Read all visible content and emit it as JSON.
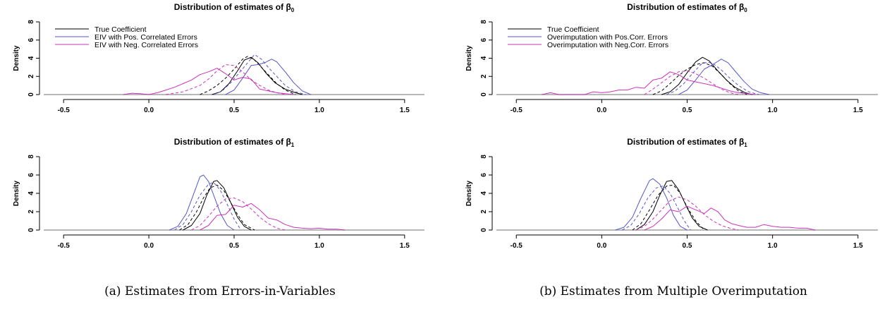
{
  "captions": [
    "(a) Estimates from Errors-in-Variables",
    "(b) Estimates from Multiple Overimputation"
  ],
  "colors": {
    "true": "#000000",
    "pos": "#5555cc",
    "neg": "#cc33bb",
    "baseline": "#a0a0a0"
  },
  "chart_data": [
    {
      "type": "line",
      "title": "Distribution of estimates of β0",
      "title_text": "Distribution of estimates of β",
      "title_sub": "0",
      "ylabel": "Density",
      "xlim": [
        -0.6,
        1.6
      ],
      "ylim": [
        0,
        8
      ],
      "xticks": [
        -0.5,
        0.0,
        0.5,
        1.0,
        1.5
      ],
      "xtick_labels": [
        "-0.5",
        "0.0",
        "0.5",
        "1.0",
        "1.5"
      ],
      "yticks": [
        0,
        2,
        4,
        6,
        8
      ],
      "ytick_labels": [
        "0",
        "2",
        "4",
        "6",
        "8"
      ],
      "legend": [
        "True Coefficient",
        "EIV with Pos. Correlated Errors",
        "EIV with Neg. Correlated Errors"
      ],
      "series": [
        {
          "name": "True Coefficient",
          "color": "true",
          "dash": false,
          "x": [
            0.37,
            0.42,
            0.47,
            0.52,
            0.56,
            0.6,
            0.64,
            0.69,
            0.74,
            0.8,
            0.86,
            0.9
          ],
          "y": [
            0,
            0.3,
            1.2,
            2.6,
            3.8,
            4.1,
            3.5,
            2.3,
            1.3,
            0.6,
            0.2,
            0
          ]
        },
        {
          "name": "",
          "color": "true",
          "dash": true,
          "x": [
            0.3,
            0.35,
            0.4,
            0.45,
            0.5,
            0.55,
            0.58,
            0.62,
            0.66,
            0.7,
            0.75,
            0.8,
            0.86
          ],
          "y": [
            0,
            0.4,
            1,
            1.8,
            2.8,
            3.9,
            4.2,
            3.8,
            3,
            2.2,
            1.2,
            0.5,
            0
          ]
        },
        {
          "name": "EIV with Pos. Correlated Errors",
          "color": "pos",
          "dash": false,
          "x": [
            0.45,
            0.5,
            0.55,
            0.6,
            0.64,
            0.68,
            0.72,
            0.75,
            0.8,
            0.85,
            0.9,
            0.95
          ],
          "y": [
            0,
            0.5,
            1.8,
            3.2,
            3.3,
            3.5,
            3.9,
            3.6,
            2.5,
            1.3,
            0.4,
            0
          ]
        },
        {
          "name": "",
          "color": "pos",
          "dash": true,
          "x": [
            0.38,
            0.43,
            0.48,
            0.53,
            0.58,
            0.62,
            0.66,
            0.7,
            0.75,
            0.8,
            0.86,
            0.92
          ],
          "y": [
            0,
            0.4,
            1.3,
            2.4,
            3.5,
            4.4,
            3.9,
            3,
            2,
            1,
            0.3,
            0
          ]
        },
        {
          "name": "EIV with Neg. Correlated Errors",
          "color": "neg",
          "dash": false,
          "x": [
            -0.15,
            -0.1,
            -0.05,
            0,
            0.05,
            0.1,
            0.15,
            0.2,
            0.25,
            0.3,
            0.35,
            0.4,
            0.45,
            0.5,
            0.55,
            0.6,
            0.65,
            0.7,
            0.75,
            0.8,
            0.85
          ],
          "y": [
            0,
            0.15,
            0.1,
            0,
            0.2,
            0.5,
            0.8,
            1.2,
            1.6,
            2.2,
            2.5,
            2.9,
            2.3,
            1.6,
            1.9,
            1.7,
            0.6,
            0.4,
            0.2,
            0.1,
            0
          ]
        },
        {
          "name": "",
          "color": "neg",
          "dash": true,
          "x": [
            0.1,
            0.2,
            0.3,
            0.35,
            0.4,
            0.45,
            0.5,
            0.55,
            0.6,
            0.65,
            0.7,
            0.75,
            0.8
          ],
          "y": [
            0,
            0.3,
            1,
            1.7,
            2.6,
            3.3,
            3.2,
            2.5,
            1.6,
            1,
            0.5,
            0.2,
            0
          ]
        }
      ]
    },
    {
      "type": "line",
      "title": "Distribution of estimates of β1",
      "title_text": "Distribution of estimates of β",
      "title_sub": "1",
      "ylabel": "Density",
      "xlim": [
        -0.6,
        1.6
      ],
      "ylim": [
        0,
        8
      ],
      "xticks": [
        -0.5,
        0.0,
        0.5,
        1.0,
        1.5
      ],
      "xtick_labels": [
        "-0.5",
        "0.0",
        "0.5",
        "1.0",
        "1.5"
      ],
      "yticks": [
        0,
        2,
        4,
        6,
        8
      ],
      "ytick_labels": [
        "0",
        "2",
        "4",
        "6",
        "8"
      ],
      "legend": [],
      "series": [
        {
          "name": "",
          "color": "true",
          "dash": false,
          "x": [
            0.2,
            0.25,
            0.3,
            0.34,
            0.38,
            0.4,
            0.44,
            0.48,
            0.52,
            0.56,
            0.6
          ],
          "y": [
            0,
            0.5,
            1.8,
            3.8,
            5.3,
            5.4,
            4.6,
            3,
            1.4,
            0.4,
            0
          ]
        },
        {
          "name": "",
          "color": "true",
          "dash": true,
          "x": [
            0.18,
            0.23,
            0.28,
            0.32,
            0.36,
            0.4,
            0.44,
            0.48,
            0.52,
            0.56,
            0.62
          ],
          "y": [
            0,
            0.6,
            2,
            3.5,
            4.6,
            4.9,
            4.3,
            3,
            1.7,
            0.6,
            0
          ]
        },
        {
          "name": "",
          "color": "pos",
          "dash": false,
          "x": [
            0.12,
            0.17,
            0.22,
            0.26,
            0.3,
            0.32,
            0.35,
            0.38,
            0.42,
            0.46,
            0.5
          ],
          "y": [
            0,
            0.4,
            1.8,
            3.8,
            5.8,
            6,
            5.3,
            3.8,
            1.8,
            0.5,
            0
          ]
        },
        {
          "name": "",
          "color": "pos",
          "dash": true,
          "x": [
            0.15,
            0.2,
            0.25,
            0.3,
            0.35,
            0.38,
            0.42,
            0.46,
            0.5,
            0.54
          ],
          "y": [
            0,
            0.6,
            2,
            3.8,
            5,
            5.2,
            4.3,
            2.8,
            1.2,
            0
          ]
        },
        {
          "name": "",
          "color": "neg",
          "dash": false,
          "x": [
            0.3,
            0.35,
            0.4,
            0.45,
            0.5,
            0.55,
            0.6,
            0.65,
            0.7,
            0.75,
            0.8,
            0.85,
            0.9,
            0.95,
            1,
            1.05,
            1.1,
            1.15
          ],
          "y": [
            0,
            0.5,
            1.6,
            1.7,
            2.7,
            2.5,
            2.9,
            2.2,
            1.3,
            1.1,
            0.6,
            0.3,
            0.2,
            0.15,
            0.2,
            0.1,
            0.1,
            0
          ]
        },
        {
          "name": "",
          "color": "neg",
          "dash": true,
          "x": [
            0.25,
            0.3,
            0.35,
            0.4,
            0.45,
            0.5,
            0.55,
            0.6,
            0.65,
            0.7,
            0.75,
            0.8
          ],
          "y": [
            0,
            0.5,
            1.5,
            2.6,
            3.4,
            3.5,
            3.1,
            2.3,
            1.4,
            0.7,
            0.2,
            0
          ]
        }
      ]
    },
    {
      "type": "line",
      "title": "Distribution of estimates of β0",
      "title_text": "Distribution of estimates of β",
      "title_sub": "0",
      "ylabel": "Density",
      "xlim": [
        -0.6,
        1.6
      ],
      "ylim": [
        0,
        8
      ],
      "xticks": [
        -0.5,
        0.0,
        0.5,
        1.0,
        1.5
      ],
      "xtick_labels": [
        "-0.5",
        "0.0",
        "0.5",
        "1.0",
        "1.5"
      ],
      "yticks": [
        0,
        2,
        4,
        6,
        8
      ],
      "ytick_labels": [
        "0",
        "2",
        "4",
        "6",
        "8"
      ],
      "legend": [
        "True Coefficient",
        "Overimputation with Pos.Corr. Errors",
        "Overimputation with Neg.Corr. Errors"
      ],
      "series": [
        {
          "name": "True Coefficient",
          "color": "true",
          "dash": false,
          "x": [
            0.35,
            0.4,
            0.45,
            0.5,
            0.55,
            0.59,
            0.63,
            0.68,
            0.73,
            0.78,
            0.84,
            0.88
          ],
          "y": [
            0,
            0.3,
            1.1,
            2.4,
            3.6,
            4.1,
            3.7,
            2.6,
            1.6,
            0.8,
            0.2,
            0
          ]
        },
        {
          "name": "",
          "color": "true",
          "dash": true,
          "x": [
            0.3,
            0.35,
            0.4,
            0.45,
            0.5,
            0.55,
            0.6,
            0.65,
            0.7,
            0.75,
            0.8,
            0.85
          ],
          "y": [
            0,
            0.4,
            1.2,
            2.1,
            2.8,
            3.3,
            3.5,
            3.1,
            2.2,
            1.2,
            0.4,
            0
          ]
        },
        {
          "name": "Overimputation with Pos.Corr. Errors",
          "color": "pos",
          "dash": false,
          "x": [
            0.45,
            0.5,
            0.55,
            0.6,
            0.65,
            0.7,
            0.74,
            0.78,
            0.83,
            0.88,
            0.93,
            0.98
          ],
          "y": [
            0,
            0.5,
            1.6,
            2.8,
            3.3,
            3.9,
            3.5,
            2.6,
            1.5,
            0.6,
            0.2,
            0
          ]
        },
        {
          "name": "",
          "color": "pos",
          "dash": true,
          "x": [
            0.38,
            0.43,
            0.48,
            0.53,
            0.58,
            0.62,
            0.66,
            0.7,
            0.75,
            0.8,
            0.86,
            0.92
          ],
          "y": [
            0,
            0.4,
            1.2,
            2.3,
            3.3,
            3.6,
            3.3,
            2.7,
            1.8,
            1,
            0.3,
            0
          ]
        },
        {
          "name": "Overimputation with Neg.Corr. Errors",
          "color": "neg",
          "dash": false,
          "x": [
            -0.35,
            -0.3,
            -0.25,
            -0.1,
            -0.05,
            0,
            0.05,
            0.1,
            0.15,
            0.2,
            0.25,
            0.3,
            0.35,
            0.4,
            0.45,
            0.5,
            0.55,
            0.6,
            0.65,
            0.7,
            0.75,
            0.8,
            0.85,
            0.9
          ],
          "y": [
            0,
            0.2,
            0,
            0,
            0.3,
            0.2,
            0.3,
            0.5,
            0.5,
            0.8,
            0.7,
            1.6,
            1.8,
            2.5,
            2.2,
            1.6,
            1.4,
            1.2,
            1,
            0.7,
            0.4,
            0.2,
            0.1,
            0
          ]
        },
        {
          "name": "",
          "color": "neg",
          "dash": true,
          "x": [
            0.25,
            0.3,
            0.35,
            0.4,
            0.45,
            0.5,
            0.55,
            0.6,
            0.65,
            0.7,
            0.75,
            0.8
          ],
          "y": [
            0,
            0.6,
            1.3,
            2,
            2.5,
            2.6,
            2.3,
            1.8,
            1.2,
            0.6,
            0.2,
            0
          ]
        }
      ]
    },
    {
      "type": "line",
      "title": "Distribution of estimates of β1",
      "title_text": "Distribution of estimates of β",
      "title_sub": "1",
      "ylabel": "Density",
      "xlim": [
        -0.6,
        1.6
      ],
      "ylim": [
        0,
        8
      ],
      "xticks": [
        -0.5,
        0.0,
        0.5,
        1.0,
        1.5
      ],
      "xtick_labels": [
        "-0.5",
        "0.0",
        "0.5",
        "1.0",
        "1.5"
      ],
      "yticks": [
        0,
        2,
        4,
        6,
        8
      ],
      "ytick_labels": [
        "0",
        "2",
        "4",
        "6",
        "8"
      ],
      "legend": [],
      "series": [
        {
          "name": "",
          "color": "true",
          "dash": false,
          "x": [
            0.2,
            0.25,
            0.3,
            0.34,
            0.38,
            0.41,
            0.45,
            0.49,
            0.53,
            0.57,
            0.62
          ],
          "y": [
            0,
            0.6,
            2,
            3.8,
            5.3,
            5.4,
            4.4,
            2.8,
            1.3,
            0.4,
            0
          ]
        },
        {
          "name": "",
          "color": "true",
          "dash": true,
          "x": [
            0.18,
            0.23,
            0.28,
            0.33,
            0.38,
            0.42,
            0.46,
            0.5,
            0.55,
            0.6
          ],
          "y": [
            0,
            0.7,
            2.2,
            3.8,
            4.8,
            4.9,
            4,
            2.5,
            1,
            0
          ]
        },
        {
          "name": "",
          "color": "pos",
          "dash": false,
          "x": [
            0.08,
            0.13,
            0.18,
            0.23,
            0.28,
            0.3,
            0.34,
            0.38,
            0.42,
            0.46,
            0.5
          ],
          "y": [
            0,
            0.3,
            1.4,
            3.5,
            5.4,
            5.6,
            5,
            3.5,
            1.6,
            0.4,
            0
          ]
        },
        {
          "name": "",
          "color": "pos",
          "dash": true,
          "x": [
            0.12,
            0.17,
            0.22,
            0.27,
            0.32,
            0.36,
            0.4,
            0.44,
            0.48,
            0.52
          ],
          "y": [
            0,
            0.5,
            1.8,
            3.5,
            4.6,
            4.8,
            4,
            2.6,
            1.1,
            0
          ]
        },
        {
          "name": "",
          "color": "neg",
          "dash": false,
          "x": [
            0.25,
            0.3,
            0.35,
            0.4,
            0.45,
            0.5,
            0.55,
            0.6,
            0.64,
            0.68,
            0.72,
            0.76,
            0.8,
            0.85,
            0.9,
            0.95,
            1,
            1.05,
            1.1,
            1.15,
            1.2,
            1.25
          ],
          "y": [
            0,
            0.4,
            1.2,
            2.2,
            2,
            2.6,
            2.2,
            1.8,
            2.4,
            2,
            1.1,
            0.7,
            0.5,
            0.3,
            0.3,
            0.6,
            0.4,
            0.3,
            0.3,
            0.2,
            0.2,
            0
          ]
        },
        {
          "name": "",
          "color": "neg",
          "dash": true,
          "x": [
            0.2,
            0.25,
            0.3,
            0.35,
            0.4,
            0.45,
            0.5,
            0.55,
            0.6,
            0.65,
            0.7,
            0.75,
            0.8
          ],
          "y": [
            0,
            0.4,
            1.2,
            2.2,
            3.2,
            3.6,
            3.3,
            2.6,
            1.7,
            1,
            0.5,
            0.2,
            0
          ]
        }
      ]
    }
  ]
}
